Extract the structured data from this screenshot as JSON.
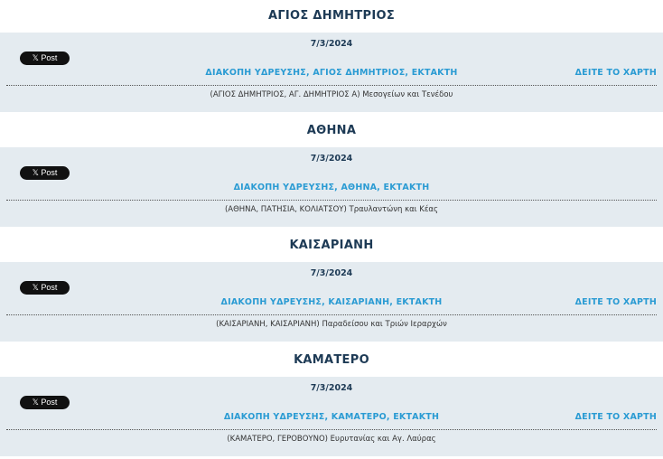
{
  "post_label": "𝕏 Post",
  "map_label": "ΔΕΙΤΕ ΤΟ ΧΑΡΤΗ",
  "entries": [
    {
      "area": "ΑΓΙΟΣ ΔΗΜΗΤΡΙΟΣ",
      "date": "7/3/2024",
      "title": "ΔΙΑΚΟΠΗ ΥΔΡΕΥΣΗΣ, ΑΓΙΟΣ ΔΗΜΗΤΡΙΟΣ, ΕΚΤΑΚΤΗ",
      "address": "(ΑΓΙΟΣ ΔΗΜΗΤΡΙΟΣ, ΑΓ. ΔΗΜΗΤΡΙΟΣ Α) Μεσογείων και Τενέδου",
      "has_map": true
    },
    {
      "area": "ΑΘΗΝΑ",
      "date": "7/3/2024",
      "title": "ΔΙΑΚΟΠΗ ΥΔΡΕΥΣΗΣ, ΑΘΗΝΑ, ΕΚΤΑΚΤΗ",
      "address": "(ΑΘΗΝΑ, ΠΑΤΗΣΙΑ, ΚΟΛΙΑΤΣΟΥ) Τραυλαντώνη και Κέας",
      "has_map": false
    },
    {
      "area": "ΚΑΙΣΑΡΙΑΝΗ",
      "date": "7/3/2024",
      "title": "ΔΙΑΚΟΠΗ ΥΔΡΕΥΣΗΣ, ΚΑΙΣΑΡΙΑΝΗ, ΕΚΤΑΚΤΗ",
      "address": "(ΚΑΙΣΑΡΙΑΝΗ, ΚΑΙΣΑΡΙΑΝΗ) Παραδείσου και Τριών Ιεραρχών",
      "has_map": true
    },
    {
      "area": "ΚΑΜΑΤΕΡΟ",
      "date": "7/3/2024",
      "title": "ΔΙΑΚΟΠΗ ΥΔΡΕΥΣΗΣ, ΚΑΜΑΤΕΡΟ, ΕΚΤΑΚΤΗ",
      "address": "(ΚΑΜΑΤΕΡΟ, ΓΕΡΟΒΟΥΝΟ) Ευρυτανίας και Αγ. Λαύρας",
      "has_map": true
    }
  ]
}
